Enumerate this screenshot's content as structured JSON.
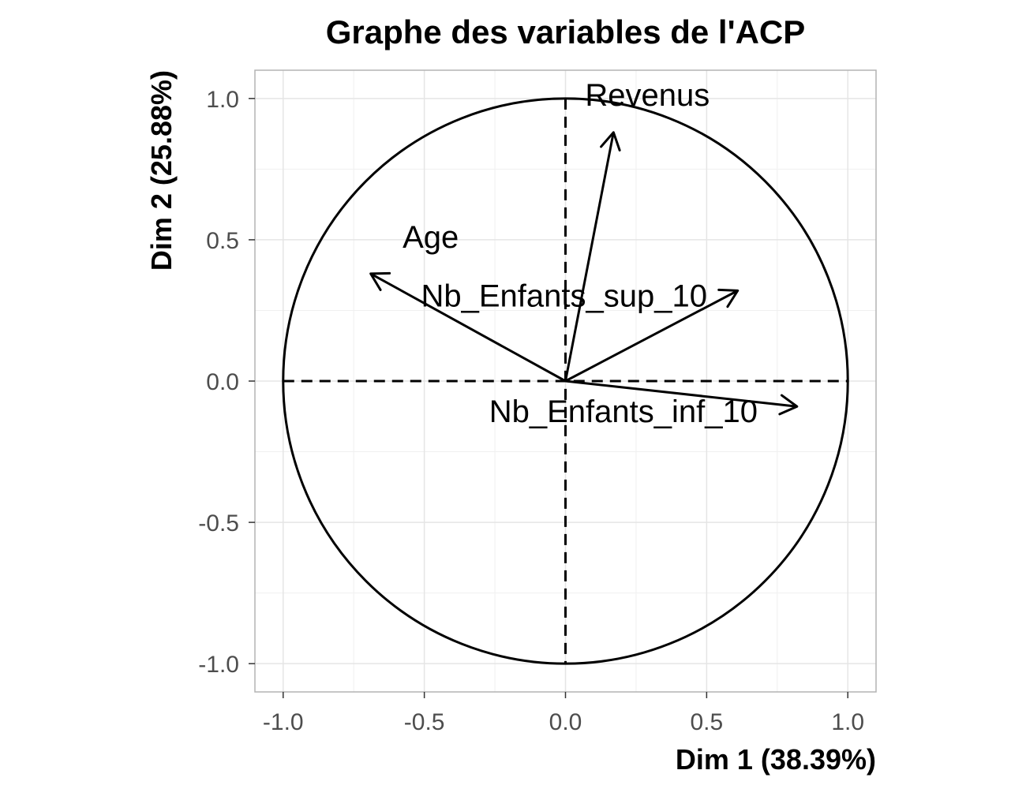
{
  "chart_data": {
    "type": "scatter",
    "subtype": "pca-correlation-circle",
    "title": "Graphe des variables de l'ACP",
    "xlabel": "Dim 1 (38.39%)",
    "ylabel": "Dim 2 (25.88%)",
    "xlim": [
      -1.1,
      1.1
    ],
    "ylim": [
      -1.1,
      1.1
    ],
    "xticks": [
      -1.0,
      -0.5,
      0.0,
      0.5,
      1.0
    ],
    "yticks": [
      -1.0,
      -0.5,
      0.0,
      0.5,
      1.0
    ],
    "xtick_labels": [
      "-1.0",
      "-0.5",
      "0.0",
      "0.5",
      "1.0"
    ],
    "ytick_labels": [
      "-1.0",
      "-0.5",
      "0.0",
      "0.5",
      "1.0"
    ],
    "grid": true,
    "unit_circle": true,
    "reference_lines": "dashed at x=0 and y=0",
    "variables": [
      {
        "name": "Revenus",
        "x": 0.17,
        "y": 0.88
      },
      {
        "name": "Age",
        "x": -0.69,
        "y": 0.38
      },
      {
        "name": "Nb_Enfants_sup_10",
        "x": 0.61,
        "y": 0.32
      },
      {
        "name": "Nb_Enfants_inf_10",
        "x": 0.82,
        "y": -0.09
      }
    ],
    "colors": {
      "arrows": "#000000",
      "circle": "#000000",
      "grid": "#e5e5e5",
      "panel_border": "#b3b3b3",
      "tick_text": "#4d4d4d"
    }
  }
}
